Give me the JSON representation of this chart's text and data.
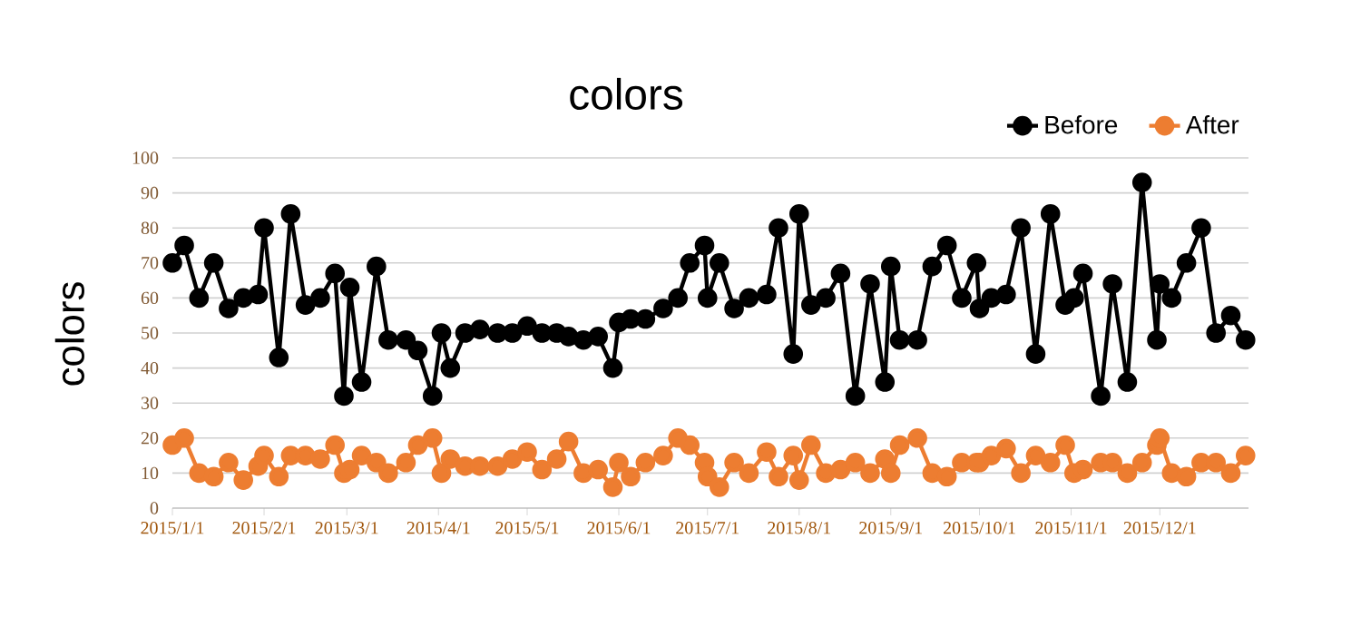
{
  "chart_data": {
    "type": "line",
    "title": "colors",
    "ylabel": "colors",
    "x": [
      "2015-01-01",
      "2015-01-05",
      "2015-01-10",
      "2015-01-15",
      "2015-01-20",
      "2015-01-25",
      "2015-01-30",
      "2015-02-01",
      "2015-02-06",
      "2015-02-10",
      "2015-02-15",
      "2015-02-20",
      "2015-02-25",
      "2015-02-28",
      "2015-03-02",
      "2015-03-06",
      "2015-03-11",
      "2015-03-15",
      "2015-03-21",
      "2015-03-25",
      "2015-03-30",
      "2015-04-02",
      "2015-04-05",
      "2015-04-10",
      "2015-04-15",
      "2015-04-21",
      "2015-04-26",
      "2015-05-01",
      "2015-05-06",
      "2015-05-11",
      "2015-05-15",
      "2015-05-20",
      "2015-05-25",
      "2015-05-30",
      "2015-06-01",
      "2015-06-05",
      "2015-06-10",
      "2015-06-16",
      "2015-06-21",
      "2015-06-25",
      "2015-06-30",
      "2015-07-01",
      "2015-07-05",
      "2015-07-10",
      "2015-07-15",
      "2015-07-21",
      "2015-07-25",
      "2015-07-30",
      "2015-08-01",
      "2015-08-05",
      "2015-08-10",
      "2015-08-15",
      "2015-08-20",
      "2015-08-25",
      "2015-08-30",
      "2015-09-01",
      "2015-09-04",
      "2015-09-10",
      "2015-09-15",
      "2015-09-20",
      "2015-09-25",
      "2015-09-30",
      "2015-10-01",
      "2015-10-05",
      "2015-10-10",
      "2015-10-15",
      "2015-10-20",
      "2015-10-25",
      "2015-10-30",
      "2015-11-02",
      "2015-11-05",
      "2015-11-11",
      "2015-11-15",
      "2015-11-20",
      "2015-11-25",
      "2015-11-30",
      "2015-12-01",
      "2015-12-05",
      "2015-12-10",
      "2015-12-15",
      "2015-12-20",
      "2015-12-25",
      "2015-12-30"
    ],
    "xlim": [
      "2015-01-01",
      "2015-12-31"
    ],
    "xticks": [
      {
        "value": "2015-01-01",
        "label": "2015/1/1"
      },
      {
        "value": "2015-02-01",
        "label": "2015/2/1"
      },
      {
        "value": "2015-03-01",
        "label": "2015/3/1"
      },
      {
        "value": "2015-04-01",
        "label": "2015/4/1"
      },
      {
        "value": "2015-05-01",
        "label": "2015/5/1"
      },
      {
        "value": "2015-06-01",
        "label": "2015/6/1"
      },
      {
        "value": "2015-07-01",
        "label": "2015/7/1"
      },
      {
        "value": "2015-08-01",
        "label": "2015/8/1"
      },
      {
        "value": "2015-09-01",
        "label": "2015/9/1"
      },
      {
        "value": "2015-10-01",
        "label": "2015/10/1"
      },
      {
        "value": "2015-11-01",
        "label": "2015/11/1"
      },
      {
        "value": "2015-12-01",
        "label": "2015/12/1"
      }
    ],
    "ylim": [
      0,
      100
    ],
    "yticks": [
      0,
      10,
      20,
      30,
      40,
      50,
      60,
      70,
      80,
      90,
      100
    ],
    "grid": "y",
    "legend": "top right",
    "marker": "circle",
    "series": [
      {
        "name": "Before",
        "color": "#000000",
        "values": [
          70,
          75,
          60,
          70,
          57,
          60,
          61,
          80,
          43,
          84,
          58,
          60,
          67,
          32,
          63,
          36,
          69,
          48,
          48,
          45,
          32,
          50,
          40,
          50,
          51,
          50,
          50,
          52,
          50,
          50,
          49,
          48,
          49,
          40,
          53,
          54,
          54,
          57,
          60,
          70,
          75,
          60,
          70,
          57,
          60,
          61,
          80,
          44,
          84,
          58,
          60,
          67,
          32,
          64,
          36,
          69,
          48,
          48,
          69,
          75,
          60,
          70,
          57,
          60,
          61,
          80,
          44,
          84,
          58,
          60,
          67,
          32,
          64,
          36,
          93,
          48,
          64,
          60,
          70,
          80,
          50,
          55,
          48
        ]
      },
      {
        "name": "After",
        "color": "#ed7d31",
        "values": [
          18,
          20,
          10,
          9,
          13,
          8,
          12,
          15,
          9,
          15,
          15,
          14,
          18,
          10,
          11,
          15,
          13,
          10,
          13,
          18,
          20,
          10,
          14,
          12,
          12,
          12,
          14,
          16,
          11,
          14,
          19,
          10,
          11,
          6,
          13,
          9,
          13,
          15,
          20,
          18,
          13,
          9,
          6,
          13,
          10,
          16,
          9,
          15,
          8,
          18,
          10,
          11,
          13,
          10,
          14,
          10,
          18,
          20,
          10,
          9,
          13,
          13,
          13,
          15,
          17,
          10,
          15,
          13,
          18,
          10,
          11,
          13,
          13,
          10,
          13,
          18,
          20,
          10,
          9,
          13,
          13,
          10,
          15
        ]
      }
    ]
  }
}
